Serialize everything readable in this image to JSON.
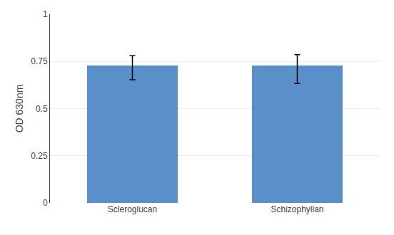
{
  "chart_data": {
    "type": "bar",
    "categories": [
      "Scleroglucan",
      "Schizophyllan"
    ],
    "values": [
      0.728,
      0.728
    ],
    "errors_upper": [
      0.052,
      0.058
    ],
    "errors_lower": [
      0.075,
      0.095
    ],
    "color": "#5B8FC9",
    "ylabel": "OD 630nm",
    "ylim": [
      0,
      1
    ],
    "yticks": [
      0,
      0.25,
      0.5,
      0.75,
      1
    ],
    "grid": true
  }
}
